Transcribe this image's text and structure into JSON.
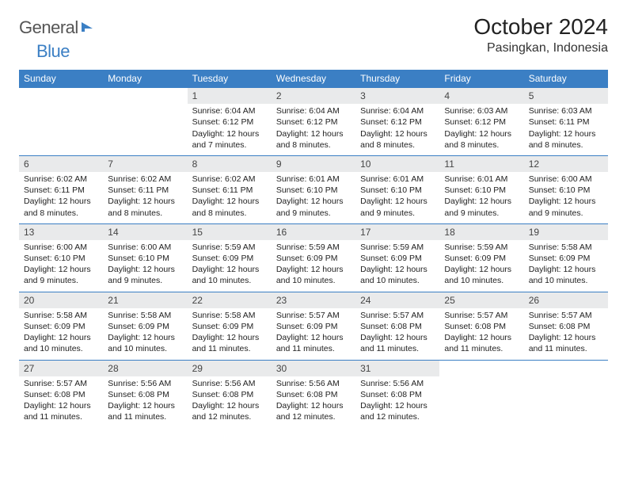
{
  "brand": {
    "part1": "General",
    "part2": "Blue"
  },
  "title": "October 2024",
  "location": "Pasingkan, Indonesia",
  "colors": {
    "accent": "#3b7fc4",
    "header_bg": "#e9eaeb",
    "text": "#222222",
    "page_bg": "#ffffff"
  },
  "weekdays": [
    "Sunday",
    "Monday",
    "Tuesday",
    "Wednesday",
    "Thursday",
    "Friday",
    "Saturday"
  ],
  "weeks": [
    [
      null,
      null,
      {
        "n": "1",
        "sr": "Sunrise: 6:04 AM",
        "ss": "Sunset: 6:12 PM",
        "d1": "Daylight: 12 hours",
        "d2": "and 7 minutes."
      },
      {
        "n": "2",
        "sr": "Sunrise: 6:04 AM",
        "ss": "Sunset: 6:12 PM",
        "d1": "Daylight: 12 hours",
        "d2": "and 8 minutes."
      },
      {
        "n": "3",
        "sr": "Sunrise: 6:04 AM",
        "ss": "Sunset: 6:12 PM",
        "d1": "Daylight: 12 hours",
        "d2": "and 8 minutes."
      },
      {
        "n": "4",
        "sr": "Sunrise: 6:03 AM",
        "ss": "Sunset: 6:12 PM",
        "d1": "Daylight: 12 hours",
        "d2": "and 8 minutes."
      },
      {
        "n": "5",
        "sr": "Sunrise: 6:03 AM",
        "ss": "Sunset: 6:11 PM",
        "d1": "Daylight: 12 hours",
        "d2": "and 8 minutes."
      }
    ],
    [
      {
        "n": "6",
        "sr": "Sunrise: 6:02 AM",
        "ss": "Sunset: 6:11 PM",
        "d1": "Daylight: 12 hours",
        "d2": "and 8 minutes."
      },
      {
        "n": "7",
        "sr": "Sunrise: 6:02 AM",
        "ss": "Sunset: 6:11 PM",
        "d1": "Daylight: 12 hours",
        "d2": "and 8 minutes."
      },
      {
        "n": "8",
        "sr": "Sunrise: 6:02 AM",
        "ss": "Sunset: 6:11 PM",
        "d1": "Daylight: 12 hours",
        "d2": "and 8 minutes."
      },
      {
        "n": "9",
        "sr": "Sunrise: 6:01 AM",
        "ss": "Sunset: 6:10 PM",
        "d1": "Daylight: 12 hours",
        "d2": "and 9 minutes."
      },
      {
        "n": "10",
        "sr": "Sunrise: 6:01 AM",
        "ss": "Sunset: 6:10 PM",
        "d1": "Daylight: 12 hours",
        "d2": "and 9 minutes."
      },
      {
        "n": "11",
        "sr": "Sunrise: 6:01 AM",
        "ss": "Sunset: 6:10 PM",
        "d1": "Daylight: 12 hours",
        "d2": "and 9 minutes."
      },
      {
        "n": "12",
        "sr": "Sunrise: 6:00 AM",
        "ss": "Sunset: 6:10 PM",
        "d1": "Daylight: 12 hours",
        "d2": "and 9 minutes."
      }
    ],
    [
      {
        "n": "13",
        "sr": "Sunrise: 6:00 AM",
        "ss": "Sunset: 6:10 PM",
        "d1": "Daylight: 12 hours",
        "d2": "and 9 minutes."
      },
      {
        "n": "14",
        "sr": "Sunrise: 6:00 AM",
        "ss": "Sunset: 6:10 PM",
        "d1": "Daylight: 12 hours",
        "d2": "and 9 minutes."
      },
      {
        "n": "15",
        "sr": "Sunrise: 5:59 AM",
        "ss": "Sunset: 6:09 PM",
        "d1": "Daylight: 12 hours",
        "d2": "and 10 minutes."
      },
      {
        "n": "16",
        "sr": "Sunrise: 5:59 AM",
        "ss": "Sunset: 6:09 PM",
        "d1": "Daylight: 12 hours",
        "d2": "and 10 minutes."
      },
      {
        "n": "17",
        "sr": "Sunrise: 5:59 AM",
        "ss": "Sunset: 6:09 PM",
        "d1": "Daylight: 12 hours",
        "d2": "and 10 minutes."
      },
      {
        "n": "18",
        "sr": "Sunrise: 5:59 AM",
        "ss": "Sunset: 6:09 PM",
        "d1": "Daylight: 12 hours",
        "d2": "and 10 minutes."
      },
      {
        "n": "19",
        "sr": "Sunrise: 5:58 AM",
        "ss": "Sunset: 6:09 PM",
        "d1": "Daylight: 12 hours",
        "d2": "and 10 minutes."
      }
    ],
    [
      {
        "n": "20",
        "sr": "Sunrise: 5:58 AM",
        "ss": "Sunset: 6:09 PM",
        "d1": "Daylight: 12 hours",
        "d2": "and 10 minutes."
      },
      {
        "n": "21",
        "sr": "Sunrise: 5:58 AM",
        "ss": "Sunset: 6:09 PM",
        "d1": "Daylight: 12 hours",
        "d2": "and 10 minutes."
      },
      {
        "n": "22",
        "sr": "Sunrise: 5:58 AM",
        "ss": "Sunset: 6:09 PM",
        "d1": "Daylight: 12 hours",
        "d2": "and 11 minutes."
      },
      {
        "n": "23",
        "sr": "Sunrise: 5:57 AM",
        "ss": "Sunset: 6:09 PM",
        "d1": "Daylight: 12 hours",
        "d2": "and 11 minutes."
      },
      {
        "n": "24",
        "sr": "Sunrise: 5:57 AM",
        "ss": "Sunset: 6:08 PM",
        "d1": "Daylight: 12 hours",
        "d2": "and 11 minutes."
      },
      {
        "n": "25",
        "sr": "Sunrise: 5:57 AM",
        "ss": "Sunset: 6:08 PM",
        "d1": "Daylight: 12 hours",
        "d2": "and 11 minutes."
      },
      {
        "n": "26",
        "sr": "Sunrise: 5:57 AM",
        "ss": "Sunset: 6:08 PM",
        "d1": "Daylight: 12 hours",
        "d2": "and 11 minutes."
      }
    ],
    [
      {
        "n": "27",
        "sr": "Sunrise: 5:57 AM",
        "ss": "Sunset: 6:08 PM",
        "d1": "Daylight: 12 hours",
        "d2": "and 11 minutes."
      },
      {
        "n": "28",
        "sr": "Sunrise: 5:56 AM",
        "ss": "Sunset: 6:08 PM",
        "d1": "Daylight: 12 hours",
        "d2": "and 11 minutes."
      },
      {
        "n": "29",
        "sr": "Sunrise: 5:56 AM",
        "ss": "Sunset: 6:08 PM",
        "d1": "Daylight: 12 hours",
        "d2": "and 12 minutes."
      },
      {
        "n": "30",
        "sr": "Sunrise: 5:56 AM",
        "ss": "Sunset: 6:08 PM",
        "d1": "Daylight: 12 hours",
        "d2": "and 12 minutes."
      },
      {
        "n": "31",
        "sr": "Sunrise: 5:56 AM",
        "ss": "Sunset: 6:08 PM",
        "d1": "Daylight: 12 hours",
        "d2": "and 12 minutes."
      },
      null,
      null
    ]
  ]
}
